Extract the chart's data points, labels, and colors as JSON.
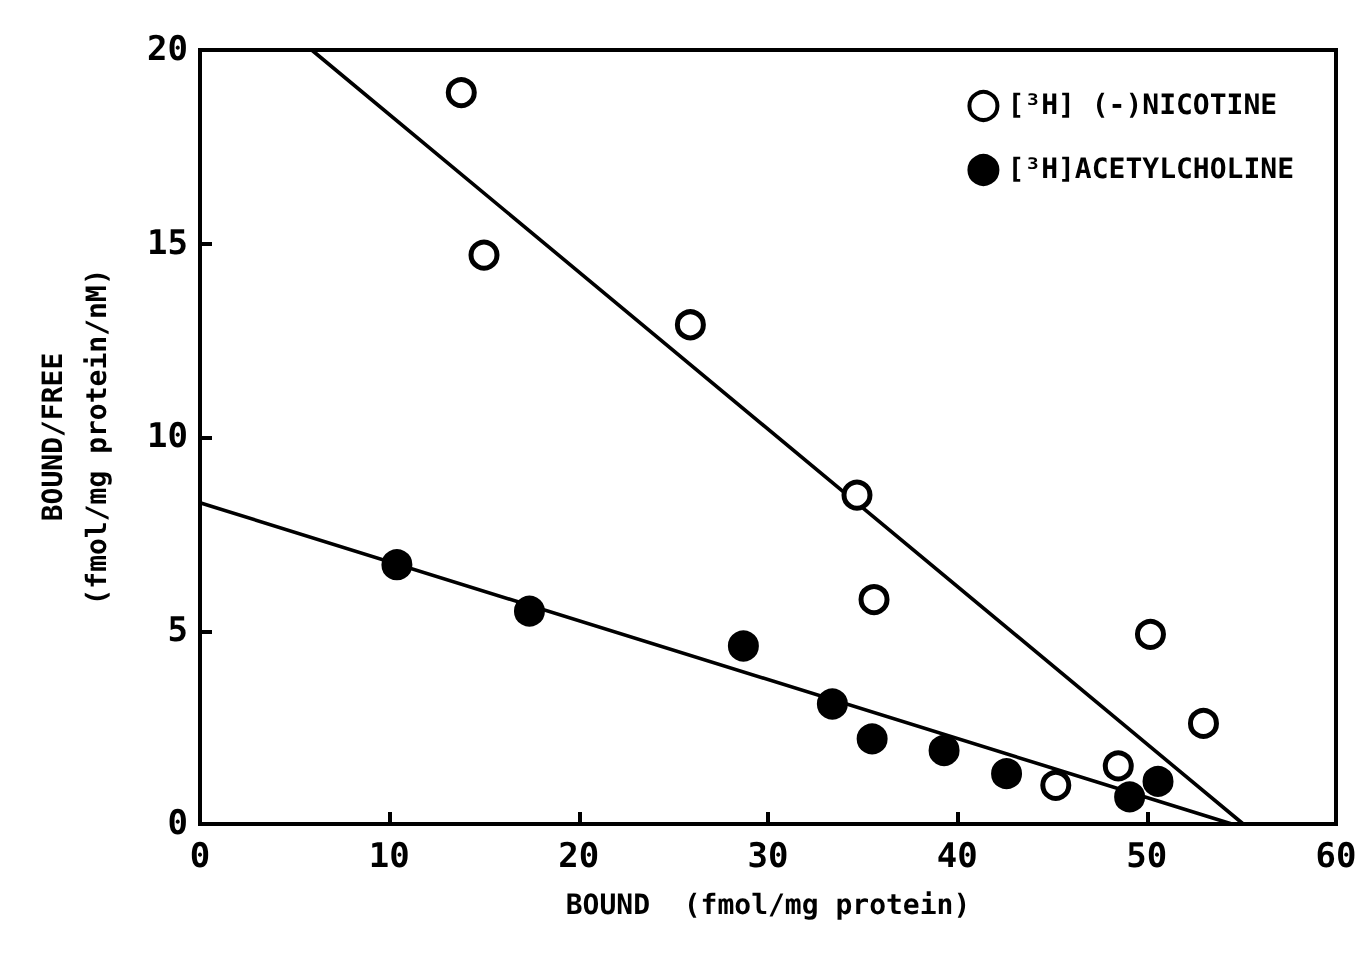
{
  "chart_data": {
    "type": "scatter",
    "xlabel": "BOUND  (fmol/mg protein)",
    "ylabel": "BOUND/FREE\n(fmol/mg protein/nM)",
    "xlim": [
      0,
      60
    ],
    "ylim": [
      0,
      20
    ],
    "xticks": [
      0,
      10,
      20,
      30,
      40,
      50,
      60
    ],
    "yticks": [
      0,
      5,
      10,
      15,
      20
    ],
    "grid": false,
    "legend": "top right",
    "marker": "circle",
    "series": [
      {
        "name": "[³H] (-)NICOTINE",
        "color": "#ffffff",
        "x": [
          13.8,
          15.0,
          25.9,
          34.7,
          35.6,
          50.2,
          53.0,
          48.5,
          45.2
        ],
        "values": [
          18.9,
          14.7,
          12.9,
          8.5,
          5.8,
          4.9,
          2.6,
          1.5,
          1.0
        ]
      },
      {
        "name": "[³H]ACETYLCHOLINE",
        "color": "#000000",
        "x": [
          10.4,
          17.4,
          28.7,
          33.4,
          35.5,
          39.3,
          42.6,
          49.1,
          50.6
        ],
        "values": [
          6.7,
          5.5,
          4.6,
          3.1,
          2.2,
          1.9,
          1.3,
          0.7,
          1.1
        ]
      },
      {
        "type": "line",
        "color": "#000000",
        "marker": "none",
        "x": [
          5.9,
          55.1
        ],
        "values": [
          20,
          0
        ]
      },
      {
        "type": "line",
        "color": "#000000",
        "marker": "none",
        "x": [
          0,
          54.5
        ],
        "values": [
          8.3,
          0
        ]
      }
    ]
  }
}
